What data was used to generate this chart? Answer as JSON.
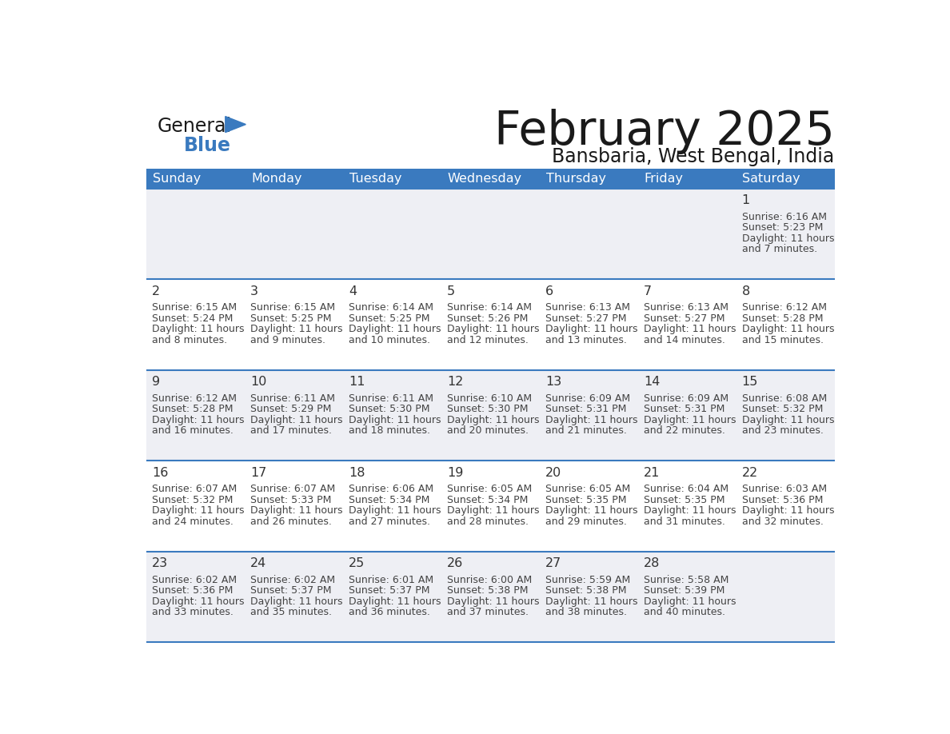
{
  "title": "February 2025",
  "subtitle": "Bansbaria, West Bengal, India",
  "header_color": "#3a7abf",
  "header_text_color": "#ffffff",
  "bg_color": "#ffffff",
  "cell_bg_light": "#eeeff4",
  "day_headers": [
    "Sunday",
    "Monday",
    "Tuesday",
    "Wednesday",
    "Thursday",
    "Friday",
    "Saturday"
  ],
  "days": [
    {
      "day": 1,
      "col": 6,
      "row": 0,
      "sunrise": "6:16 AM",
      "sunset": "5:23 PM",
      "daylight": "11 hours and 7 minutes."
    },
    {
      "day": 2,
      "col": 0,
      "row": 1,
      "sunrise": "6:15 AM",
      "sunset": "5:24 PM",
      "daylight": "11 hours and 8 minutes."
    },
    {
      "day": 3,
      "col": 1,
      "row": 1,
      "sunrise": "6:15 AM",
      "sunset": "5:25 PM",
      "daylight": "11 hours and 9 minutes."
    },
    {
      "day": 4,
      "col": 2,
      "row": 1,
      "sunrise": "6:14 AM",
      "sunset": "5:25 PM",
      "daylight": "11 hours and 10 minutes."
    },
    {
      "day": 5,
      "col": 3,
      "row": 1,
      "sunrise": "6:14 AM",
      "sunset": "5:26 PM",
      "daylight": "11 hours and 12 minutes."
    },
    {
      "day": 6,
      "col": 4,
      "row": 1,
      "sunrise": "6:13 AM",
      "sunset": "5:27 PM",
      "daylight": "11 hours and 13 minutes."
    },
    {
      "day": 7,
      "col": 5,
      "row": 1,
      "sunrise": "6:13 AM",
      "sunset": "5:27 PM",
      "daylight": "11 hours and 14 minutes."
    },
    {
      "day": 8,
      "col": 6,
      "row": 1,
      "sunrise": "6:12 AM",
      "sunset": "5:28 PM",
      "daylight": "11 hours and 15 minutes."
    },
    {
      "day": 9,
      "col": 0,
      "row": 2,
      "sunrise": "6:12 AM",
      "sunset": "5:28 PM",
      "daylight": "11 hours and 16 minutes."
    },
    {
      "day": 10,
      "col": 1,
      "row": 2,
      "sunrise": "6:11 AM",
      "sunset": "5:29 PM",
      "daylight": "11 hours and 17 minutes."
    },
    {
      "day": 11,
      "col": 2,
      "row": 2,
      "sunrise": "6:11 AM",
      "sunset": "5:30 PM",
      "daylight": "11 hours and 18 minutes."
    },
    {
      "day": 12,
      "col": 3,
      "row": 2,
      "sunrise": "6:10 AM",
      "sunset": "5:30 PM",
      "daylight": "11 hours and 20 minutes."
    },
    {
      "day": 13,
      "col": 4,
      "row": 2,
      "sunrise": "6:09 AM",
      "sunset": "5:31 PM",
      "daylight": "11 hours and 21 minutes."
    },
    {
      "day": 14,
      "col": 5,
      "row": 2,
      "sunrise": "6:09 AM",
      "sunset": "5:31 PM",
      "daylight": "11 hours and 22 minutes."
    },
    {
      "day": 15,
      "col": 6,
      "row": 2,
      "sunrise": "6:08 AM",
      "sunset": "5:32 PM",
      "daylight": "11 hours and 23 minutes."
    },
    {
      "day": 16,
      "col": 0,
      "row": 3,
      "sunrise": "6:07 AM",
      "sunset": "5:32 PM",
      "daylight": "11 hours and 24 minutes."
    },
    {
      "day": 17,
      "col": 1,
      "row": 3,
      "sunrise": "6:07 AM",
      "sunset": "5:33 PM",
      "daylight": "11 hours and 26 minutes."
    },
    {
      "day": 18,
      "col": 2,
      "row": 3,
      "sunrise": "6:06 AM",
      "sunset": "5:34 PM",
      "daylight": "11 hours and 27 minutes."
    },
    {
      "day": 19,
      "col": 3,
      "row": 3,
      "sunrise": "6:05 AM",
      "sunset": "5:34 PM",
      "daylight": "11 hours and 28 minutes."
    },
    {
      "day": 20,
      "col": 4,
      "row": 3,
      "sunrise": "6:05 AM",
      "sunset": "5:35 PM",
      "daylight": "11 hours and 29 minutes."
    },
    {
      "day": 21,
      "col": 5,
      "row": 3,
      "sunrise": "6:04 AM",
      "sunset": "5:35 PM",
      "daylight": "11 hours and 31 minutes."
    },
    {
      "day": 22,
      "col": 6,
      "row": 3,
      "sunrise": "6:03 AM",
      "sunset": "5:36 PM",
      "daylight": "11 hours and 32 minutes."
    },
    {
      "day": 23,
      "col": 0,
      "row": 4,
      "sunrise": "6:02 AM",
      "sunset": "5:36 PM",
      "daylight": "11 hours and 33 minutes."
    },
    {
      "day": 24,
      "col": 1,
      "row": 4,
      "sunrise": "6:02 AM",
      "sunset": "5:37 PM",
      "daylight": "11 hours and 35 minutes."
    },
    {
      "day": 25,
      "col": 2,
      "row": 4,
      "sunrise": "6:01 AM",
      "sunset": "5:37 PM",
      "daylight": "11 hours and 36 minutes."
    },
    {
      "day": 26,
      "col": 3,
      "row": 4,
      "sunrise": "6:00 AM",
      "sunset": "5:38 PM",
      "daylight": "11 hours and 37 minutes."
    },
    {
      "day": 27,
      "col": 4,
      "row": 4,
      "sunrise": "5:59 AM",
      "sunset": "5:38 PM",
      "daylight": "11 hours and 38 minutes."
    },
    {
      "day": 28,
      "col": 5,
      "row": 4,
      "sunrise": "5:58 AM",
      "sunset": "5:39 PM",
      "daylight": "11 hours and 40 minutes."
    }
  ]
}
